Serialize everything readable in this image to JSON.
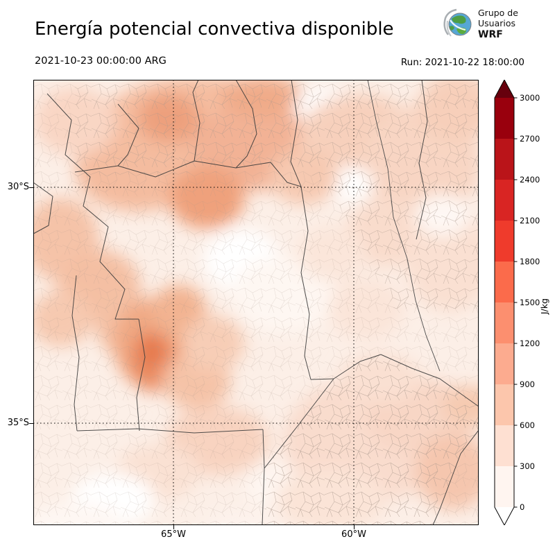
{
  "header": {
    "title": "Energía potencial convectiva disponible",
    "logo": {
      "line1": "Grupo de",
      "line2": "Usuarios",
      "line3": "WRF"
    }
  },
  "subheader": {
    "valid_time": "2021-10-23 00:00:00 ARG",
    "run_time": "Run: 2021-10-22 18:00:00"
  },
  "map": {
    "y_ticks": [
      {
        "label": "30°S"
      },
      {
        "label": "35°S"
      }
    ],
    "x_ticks": [
      {
        "label": "65°W"
      },
      {
        "label": "60°W"
      }
    ]
  },
  "colorbar": {
    "unit": "J/kg",
    "tick_labels_top_to_bottom": [
      "3000",
      "2700",
      "2400",
      "2100",
      "1800",
      "1500",
      "1200",
      "900",
      "600",
      "300",
      "0"
    ],
    "segment_colors_top_to_bottom": [
      "#99000d",
      "#ba1419",
      "#d92523",
      "#ef3b2c",
      "#fb6b4b",
      "#fc8f6f",
      "#fcab8f",
      "#fcc6ac",
      "#fee0d2",
      "#fff5f0"
    ],
    "over_arrow_color": "#67000d",
    "under_arrow_color": "#ffffff"
  },
  "chart_data": {
    "type": "heatmap",
    "title": "Energía potencial convectiva disponible",
    "unit": "J/kg",
    "valid_time": "2021-10-23 00:00:00 ARG",
    "run_label": "Run: 2021-10-22 18:00:00",
    "colorbar_levels": [
      0,
      300,
      600,
      900,
      1200,
      1500,
      1800,
      2100,
      2400,
      2700,
      3000
    ],
    "x_axis_ticks": [
      "65°W",
      "60°W"
    ],
    "y_axis_ticks": [
      "30°S",
      "35°S"
    ],
    "legend_position": "right",
    "grid": "dotted lat/lon lines"
  }
}
